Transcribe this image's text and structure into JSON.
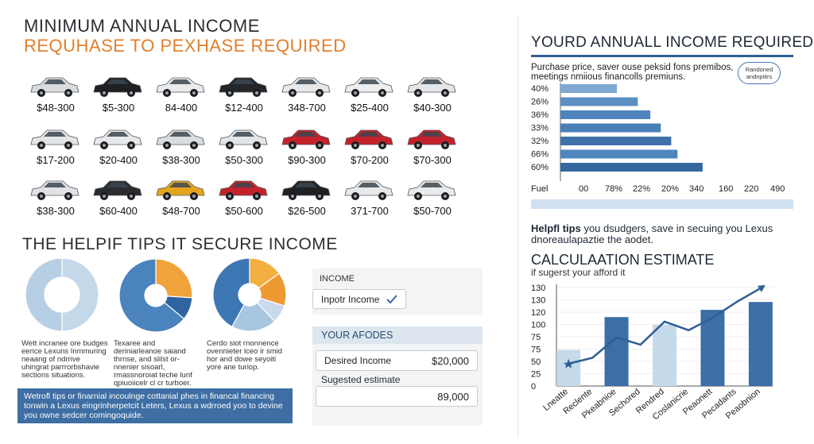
{
  "left": {
    "title_line1": "MINIMUM ANNUAL INCOME",
    "title_line2": "REQUHASE TO PEXHASE REQUIRED",
    "cars": [
      {
        "price": "$48-300",
        "color": "#d9dcdf"
      },
      {
        "price": "$5-300",
        "color": "#1e2022"
      },
      {
        "price": "84-400",
        "color": "#e9ebed"
      },
      {
        "price": "$12-400",
        "color": "#24262a"
      },
      {
        "price": "348-700",
        "color": "#e6e8ea"
      },
      {
        "price": "$25-400",
        "color": "#ecedef"
      },
      {
        "price": "$40-300",
        "color": "#e4e6e8"
      },
      {
        "price": "$17-200",
        "color": "#e3e5e7"
      },
      {
        "price": "$20-400",
        "color": "#e7e9eb"
      },
      {
        "price": "$38-300",
        "color": "#dadde0"
      },
      {
        "price": "$50-300",
        "color": "#e3e5e8"
      },
      {
        "price": "$90-300",
        "color": "#c4222b"
      },
      {
        "price": "$70-200",
        "color": "#c4222b"
      },
      {
        "price": "$70-300",
        "color": "#c4222b"
      },
      {
        "price": "$38-300",
        "color": "#e0e2e5"
      },
      {
        "price": "$60-400",
        "color": "#2a2c30"
      },
      {
        "price": "$48-700",
        "color": "#e3a51f"
      },
      {
        "price": "$50-600",
        "color": "#c4222b"
      },
      {
        "price": "$26-500",
        "color": "#1f2124"
      },
      {
        "price": "371-700",
        "color": "#e6e8ea"
      },
      {
        "price": "$50-700",
        "color": "#e8eaec"
      }
    ],
    "tips_title": "THE HELPIF TIPS IT SECURE INCOME",
    "donut_captions": [
      "Wett incranee ore budges eerice Lexuns Inmmuring neaang of ndrrive uhingrat parrrorbshavie sections situations.",
      "Texaree and deriniarleanoe saiand thrnse, and slilst or- nnenier sisoarl, rmassnoroiat teche lunf qpiuoiicelr cl cr turboer.",
      "Cerdo siot rnonnence ovennieter lceo ir smid hor and dowe seyoiti yore ane turiop."
    ],
    "banner_text": "Wetrofl tips or finarnial incoulnge cottanial phes in financal financing tonwin a Lexus eingrinherpetcit Leters, Lexus a wdrroed yoo to devine you owne sedcer comingoquide."
  },
  "middle": {
    "income_label": "INCOME",
    "input_label": "Inpotr Income",
    "afodes_title": "YOUR AFODES",
    "desired_label": "Desired Income",
    "desired_value": "$20,000",
    "suggested_label": "Sugested estimate",
    "suggested_value": "89,000"
  },
  "right": {
    "title": "YOURD ANNUALL INCOME REQUIRED",
    "subtitle": "Purchase price, saver ouse peksid fons premibos, meetings nmiious financolls premiuns.",
    "badge": "Randoned andnpiitrs",
    "fuel_label": "Fuel",
    "tips_bold": "Helpfl tips",
    "tips_rest": " you dsudgers, save in secuing you Lexus",
    "tips_line2": "dnoreaulapaztie the aodet.",
    "calc_title": "CALCULAATION ESTIMATE",
    "calc_subtitle": "if sugerst your afford it"
  },
  "chart_data": [
    {
      "type": "pie",
      "title": "",
      "values": [
        50,
        50
      ],
      "colors": [
        "#c5d8ea",
        "#b7cfe5"
      ]
    },
    {
      "type": "pie",
      "title": "",
      "values": [
        26,
        10,
        64
      ],
      "colors": [
        "#f0a33b",
        "#2f64a0",
        "#4a83bd"
      ]
    },
    {
      "type": "pie",
      "title": "",
      "values": [
        15,
        15,
        8,
        20,
        42
      ],
      "colors": [
        "#f3b040",
        "#ee9a33",
        "#c8daec",
        "#a9c6e1",
        "#3d77b3"
      ]
    },
    {
      "type": "bar",
      "orientation": "horizontal",
      "title": "YOURD ANNUALL INCOME REQUIRED",
      "categories": [
        "40%",
        "26%",
        "36%",
        "33%",
        "32%",
        "66%",
        "60%"
      ],
      "values": [
        27,
        37,
        43,
        48,
        53,
        56,
        68
      ],
      "xlim": [
        0,
        100
      ],
      "x_ticks": [
        "Fuel",
        "00",
        "78%",
        "22%",
        "20%",
        "340",
        "160",
        "220",
        "490"
      ],
      "colors": [
        "#7fa8d2",
        "#5e8fc3",
        "#4f84bc",
        "#4a7fb8",
        "#3f72aa",
        "#4f86bd",
        "#35689e"
      ]
    },
    {
      "type": "bar",
      "title": "CALCULAATION ESTIMATE",
      "categories": [
        "Lneatte",
        "Reclente",
        "Pkeabnioe",
        "Sechored",
        "Rendred",
        "Coslanicrie",
        "Peaonett",
        "Pecadants",
        "Peaobnion"
      ],
      "values": [
        55,
        0,
        105,
        0,
        93,
        0,
        116,
        0,
        128
      ],
      "line": [
        34,
        43,
        74,
        63,
        98,
        85,
        104,
        128,
        149
      ],
      "yticks": [
        "0",
        "25",
        "50",
        "75",
        "75",
        "100",
        "120",
        "130",
        "130"
      ],
      "ylim": [
        0,
        150
      ],
      "bar_colors": [
        "#c5daea",
        "#3c6fa6",
        "#c5daea",
        "#3c6fa6",
        "#3c6fa6"
      ],
      "line_color": "#2e5f94"
    }
  ]
}
